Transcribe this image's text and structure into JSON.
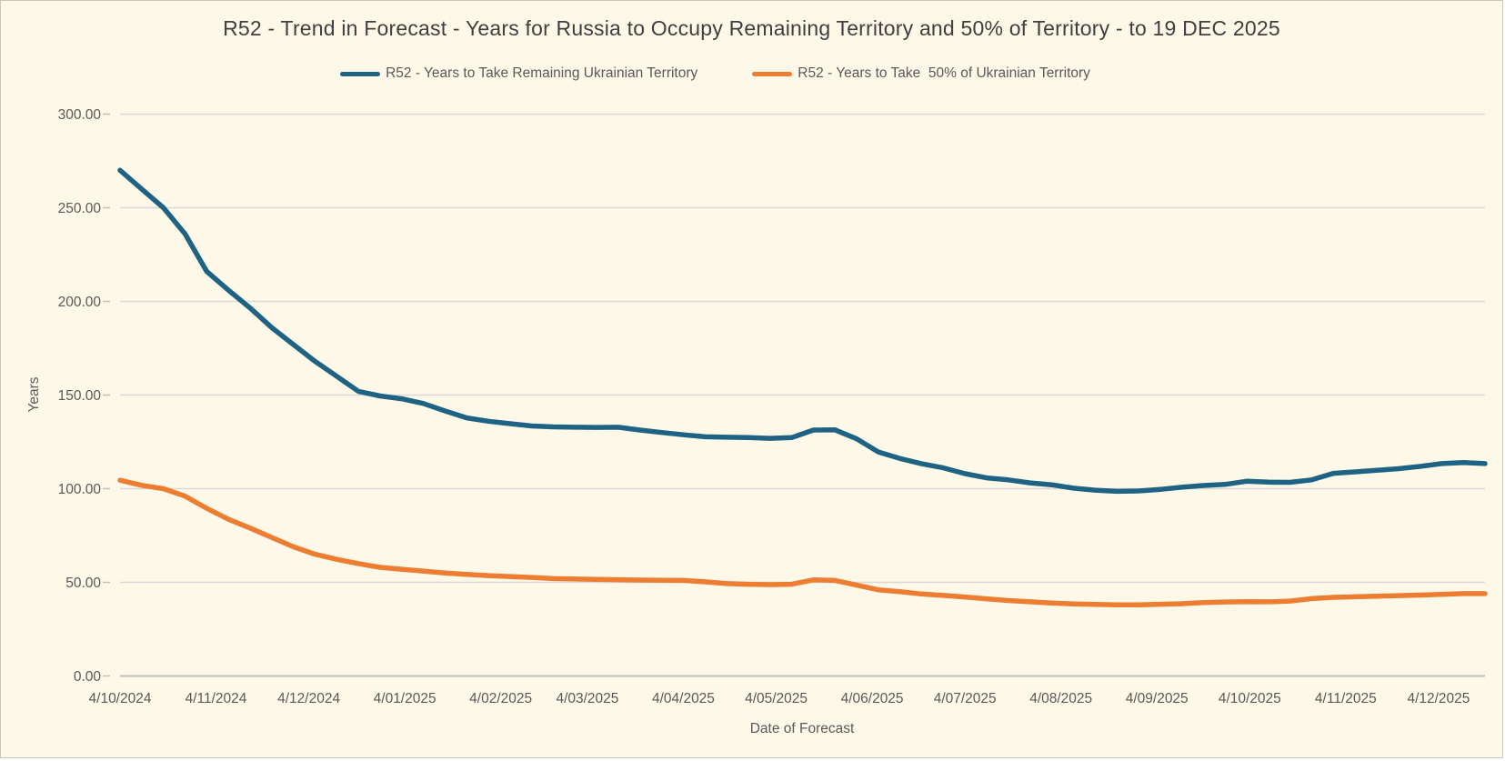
{
  "title": "R52 - Trend in Forecast - Years for Russia to Occupy Remaining Territory and 50% of Territory - to 19 DEC 2025",
  "legend": [
    {
      "label": "R52 - Years to Take Remaining Ukrainian Territory",
      "color": "#1F6384"
    },
    {
      "label": "R52 - Years to Take  50% of Ukrainian Territory",
      "color": "#ED7D31"
    }
  ],
  "x_axis": {
    "title": "Date of Forecast",
    "ticks": [
      {
        "label": "4/10/2024",
        "day": 0
      },
      {
        "label": "4/11/2024",
        "day": 31
      },
      {
        "label": "4/12/2024",
        "day": 61
      },
      {
        "label": "4/01/2025",
        "day": 92
      },
      {
        "label": "4/02/2025",
        "day": 123
      },
      {
        "label": "4/03/2025",
        "day": 151
      },
      {
        "label": "4/04/2025",
        "day": 182
      },
      {
        "label": "4/05/2025",
        "day": 212
      },
      {
        "label": "4/06/2025",
        "day": 243
      },
      {
        "label": "4/07/2025",
        "day": 273
      },
      {
        "label": "4/08/2025",
        "day": 304
      },
      {
        "label": "4/09/2025",
        "day": 335
      },
      {
        "label": "4/10/2025",
        "day": 365
      },
      {
        "label": "4/11/2025",
        "day": 396
      },
      {
        "label": "4/12/2025",
        "day": 426
      }
    ]
  },
  "y_axis": {
    "title": "Years",
    "tick_labels": [
      "0.00",
      "50.00",
      "100.00",
      "150.00",
      "200.00",
      "250.00",
      "300.00"
    ],
    "min": 0,
    "max": 300,
    "step": 50
  },
  "chart_data": {
    "type": "line",
    "title": "R52 - Trend in Forecast - Years for Russia to Occupy Remaining Territory and 50% of Territory - to 19 DEC 2025",
    "xlabel": "Date of Forecast",
    "ylabel": "Years",
    "ylim": [
      0,
      300
    ],
    "grid": "horizontal",
    "legend_position": "top",
    "x_unit": "weekly forecast dates from 4 Oct 2024 to 19 Dec 2025 (7-day spacing)",
    "total_days": 441,
    "week_step_days": 7,
    "series": [
      {
        "name": "R52 - Years to Take Remaining Ukrainian Territory",
        "color": "#1F6384",
        "values": [
          270,
          260,
          250,
          236,
          216,
          206,
          196.5,
          186,
          177,
          168,
          160,
          152,
          149.5,
          148,
          145.5,
          141.5,
          137.8,
          136,
          134.7,
          133.5,
          133,
          132.8,
          132.7,
          132.8,
          131.3,
          130,
          128.8,
          127.7,
          127.5,
          127.3,
          126.9,
          127.3,
          131.3,
          131.4,
          126.6,
          119.6,
          116.1,
          113.3,
          111.1,
          108,
          105.8,
          104.7,
          103.1,
          102.1,
          100.3,
          99.2,
          98.6,
          98.8,
          99.6,
          100.8,
          101.7,
          102.3,
          104,
          103.5,
          103.4,
          104.7,
          108.2,
          109,
          109.8,
          110.7,
          111.9,
          113.4,
          114,
          113.4
        ]
      },
      {
        "name": "R52 - Years to Take  50% of Ukrainian Territory",
        "color": "#ED7D31",
        "values": [
          104.5,
          101.8,
          100,
          96,
          89.5,
          83.7,
          79,
          74,
          69,
          65,
          62.3,
          60,
          58,
          57,
          56,
          55,
          54.2,
          53.6,
          53.1,
          52.6,
          52,
          51.8,
          51.6,
          51.4,
          51.2,
          51.1,
          51,
          50.3,
          49.3,
          49,
          48.8,
          49,
          51.3,
          51,
          48.5,
          46,
          45,
          43.8,
          43,
          42.2,
          41.2,
          40.3,
          39.6,
          39,
          38.5,
          38.2,
          38,
          38,
          38.3,
          38.6,
          39.2,
          39.5,
          39.7,
          39.6,
          40,
          41.3,
          42,
          42.3,
          42.6,
          42.9,
          43.2,
          43.6,
          44,
          44
        ]
      }
    ]
  },
  "style": {
    "background": "#FDF8E8",
    "gridline": "#D9D9D9",
    "axis_line": "#BFBFBF",
    "tick_text": "#595959",
    "title_text": "#3F3F3F",
    "border": "#C9C7BA"
  }
}
